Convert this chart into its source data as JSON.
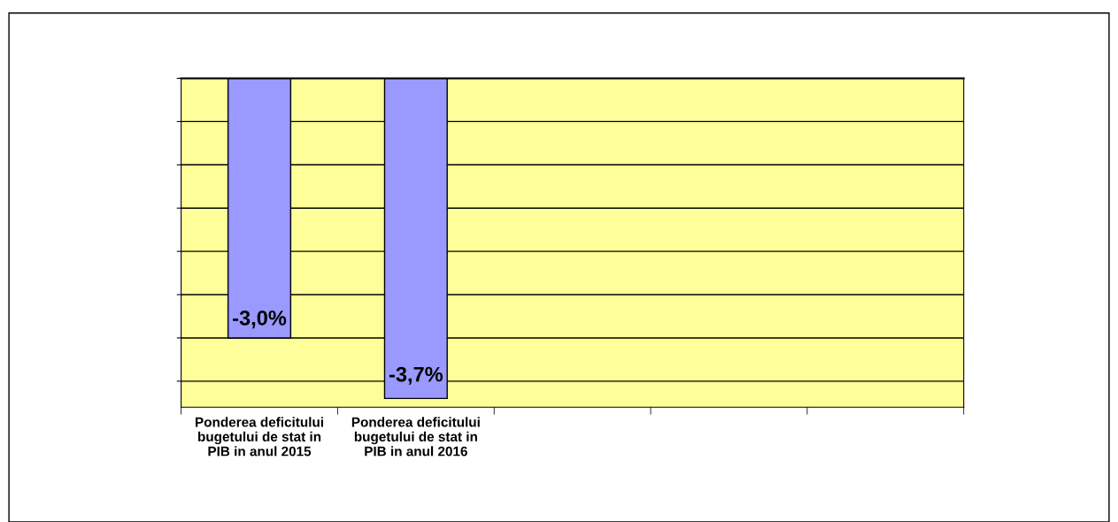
{
  "chart_data": {
    "type": "bar",
    "categories": [
      "Ponderea deficitului\nbugetului de stat in\nPIB in anul 2015",
      "Ponderea deficitului\nbugetului de stat in\nPIB in anul 2016",
      null,
      null,
      null
    ],
    "values": [
      -3.0,
      -3.7,
      null,
      null,
      null
    ],
    "value_labels": [
      "-3,0%",
      "-3,7%",
      null,
      null,
      null
    ],
    "color": "#9999ff",
    "ylim": [
      -3.8,
      0
    ],
    "yticks": [
      {
        "value": 0,
        "label": null
      },
      {
        "value": -0.5,
        "label": null
      },
      {
        "value": -1.0,
        "label": null
      },
      {
        "value": -1.5,
        "label": null
      },
      {
        "value": -2.0,
        "label": null
      },
      {
        "value": -2.5,
        "label": null
      },
      {
        "value": -3.0,
        "label": null
      },
      {
        "value": -3.5,
        "label": null
      }
    ],
    "grid": "y",
    "tick_labels": "x"
  }
}
